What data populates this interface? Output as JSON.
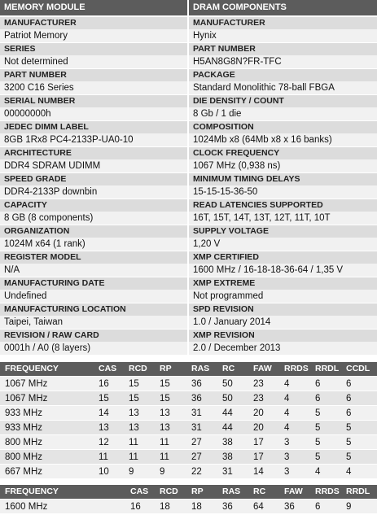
{
  "left_header": "MEMORY MODULE",
  "right_header": "DRAM COMPONENTS",
  "rows": [
    {
      "left_label": "MANUFACTURER",
      "left_value": "Patriot Memory",
      "right_label": "MANUFACTURER",
      "right_value": "Hynix"
    },
    {
      "left_label": "SERIES",
      "left_value": "Not determined",
      "right_label": "PART NUMBER",
      "right_value": "H5AN8G8N?FR-TFC"
    },
    {
      "left_label": "PART NUMBER",
      "left_value": "3200 C16 Series",
      "right_label": "PACKAGE",
      "right_value": "Standard Monolithic 78-ball FBGA"
    },
    {
      "left_label": "SERIAL NUMBER",
      "left_value": "00000000h",
      "right_label": "DIE DENSITY / COUNT",
      "right_value": "8 Gb / 1 die"
    },
    {
      "left_label": "JEDEC DIMM LABEL",
      "left_value": "8GB 1Rx8 PC4-2133P-UA0-10",
      "right_label": "COMPOSITION",
      "right_value": "1024Mb x8 (64Mb x8 x 16 banks)"
    },
    {
      "left_label": "ARCHITECTURE",
      "left_value": "DDR4 SDRAM UDIMM",
      "right_label": "CLOCK FREQUENCY",
      "right_value": "1067 MHz (0,938 ns)"
    },
    {
      "left_label": "SPEED GRADE",
      "left_value": "DDR4-2133P downbin",
      "right_label": "MINIMUM TIMING DELAYS",
      "right_value": "15-15-15-36-50"
    },
    {
      "left_label": "CAPACITY",
      "left_value": "8 GB (8 components)",
      "right_label": "READ LATENCIES SUPPORTED",
      "right_value": "16T, 15T, 14T, 13T, 12T, 11T, 10T"
    },
    {
      "left_label": "ORGANIZATION",
      "left_value": "1024M x64 (1 rank)",
      "right_label": "SUPPLY VOLTAGE",
      "right_value": "1,20 V"
    },
    {
      "left_label": "REGISTER MODEL",
      "left_value": "N/A",
      "right_label": "XMP CERTIFIED",
      "right_value": "1600 MHz / 16-18-18-36-64 / 1,35 V"
    },
    {
      "left_label": "MANUFACTURING DATE",
      "left_value": "Undefined",
      "right_label": "XMP EXTREME",
      "right_value": "Not programmed"
    },
    {
      "left_label": "MANUFACTURING LOCATION",
      "left_value": "Taipei, Taiwan",
      "right_label": "SPD REVISION",
      "right_value": "1.0 / January 2014"
    },
    {
      "left_label": "REVISION / RAW CARD",
      "left_value": "0001h / A0 (8 layers)",
      "right_label": "XMP REVISION",
      "right_value": "2.0 / December 2013"
    }
  ],
  "timings": {
    "columns": [
      "FREQUENCY",
      "CAS",
      "RCD",
      "RP",
      "RAS",
      "RC",
      "FAW",
      "RRDS",
      "RRDL",
      "CCDL"
    ],
    "rows": [
      [
        "1067 MHz",
        16,
        15,
        15,
        36,
        50,
        23,
        4,
        6,
        6
      ],
      [
        "1067 MHz",
        15,
        15,
        15,
        36,
        50,
        23,
        4,
        6,
        6
      ],
      [
        "933 MHz",
        14,
        13,
        13,
        31,
        44,
        20,
        4,
        5,
        6
      ],
      [
        "933 MHz",
        13,
        13,
        13,
        31,
        44,
        20,
        4,
        5,
        5
      ],
      [
        "800 MHz",
        12,
        11,
        11,
        27,
        38,
        17,
        3,
        5,
        5
      ],
      [
        "800 MHz",
        11,
        11,
        11,
        27,
        38,
        17,
        3,
        5,
        5
      ],
      [
        "667 MHz",
        10,
        9,
        9,
        22,
        31,
        14,
        3,
        4,
        4
      ]
    ]
  },
  "xmp_timings": {
    "columns": [
      "FREQUENCY",
      "CAS",
      "RCD",
      "RP",
      "RAS",
      "RC",
      "FAW",
      "RRDS",
      "RRDL"
    ],
    "rows": [
      [
        "1600 MHz",
        16,
        18,
        18,
        36,
        64,
        36,
        6,
        9
      ]
    ]
  }
}
